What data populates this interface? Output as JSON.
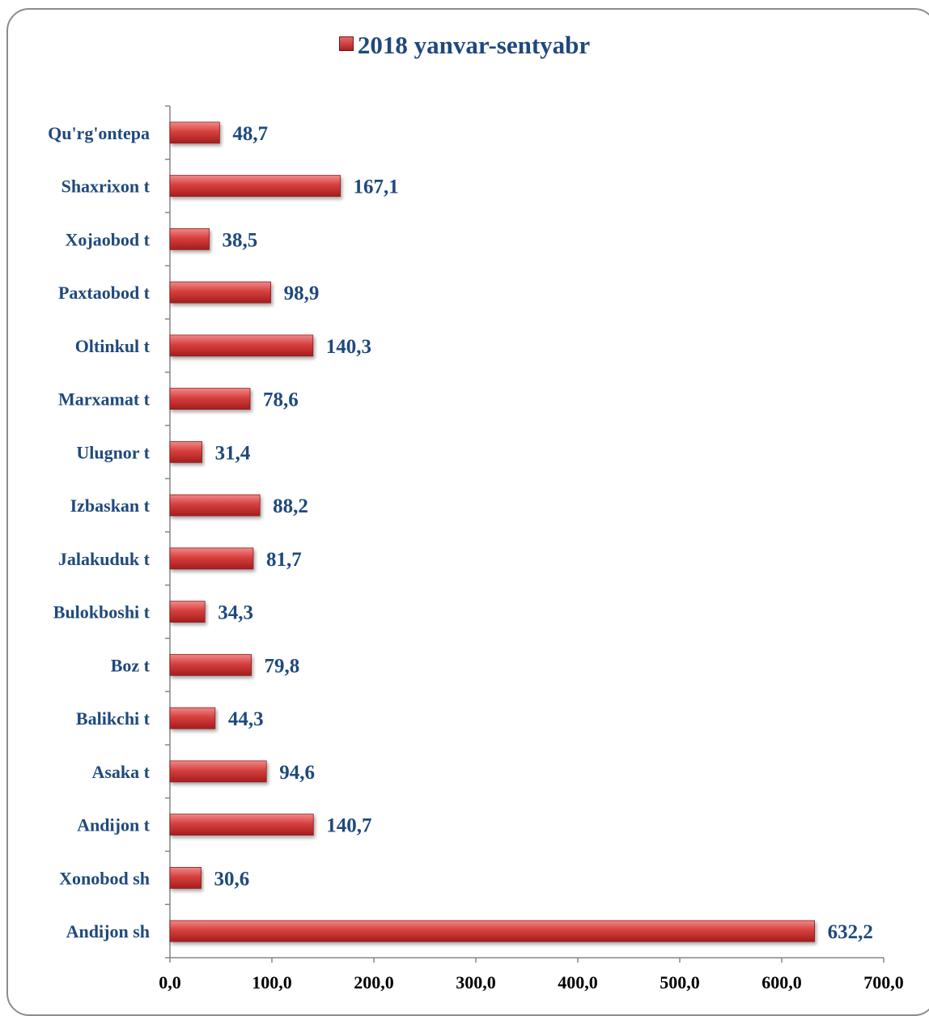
{
  "chart_data": {
    "type": "bar",
    "orientation": "horizontal",
    "categories": [
      "Andijon sh",
      "Xonobod sh",
      "Andijon t",
      "Asaka t",
      "Balikchi t",
      "Boz t",
      "Bulokboshi t",
      "Jalakuduk t",
      "Izbaskan t",
      "Ulugnor t",
      "Marxamat t",
      "Oltinkul t",
      "Paxtaobod t",
      "Xojaobod t",
      "Shaxrixon t",
      "Qu'rg'ontepa"
    ],
    "series": [
      {
        "name": "2018 yanvar-sentyabr",
        "values": [
          632.2,
          30.6,
          140.7,
          94.6,
          44.3,
          79.8,
          34.3,
          81.7,
          88.2,
          31.4,
          78.6,
          140.3,
          98.9,
          38.5,
          167.1,
          48.7
        ],
        "value_labels": [
          "632,2",
          "30,6",
          "140,7",
          "94,6",
          "44,3",
          "79,8",
          "34,3",
          "81,7",
          "88,2",
          "31,4",
          "78,6",
          "140,3",
          "98,9",
          "38,5",
          "167,1",
          "48,7"
        ]
      }
    ],
    "xlim": [
      0,
      700
    ],
    "xticks": [
      0,
      100,
      200,
      300,
      400,
      500,
      600,
      700
    ],
    "xtick_labels": [
      "0,0",
      "100,0",
      "200,0",
      "300,0",
      "400,0",
      "500,0",
      "600,0",
      "700,0"
    ],
    "legend_position": "top",
    "grid": false,
    "colors": {
      "bar": "#c0302f",
      "bar_light": "#e87070",
      "text": "#1f497d",
      "axis": "#868686"
    }
  }
}
